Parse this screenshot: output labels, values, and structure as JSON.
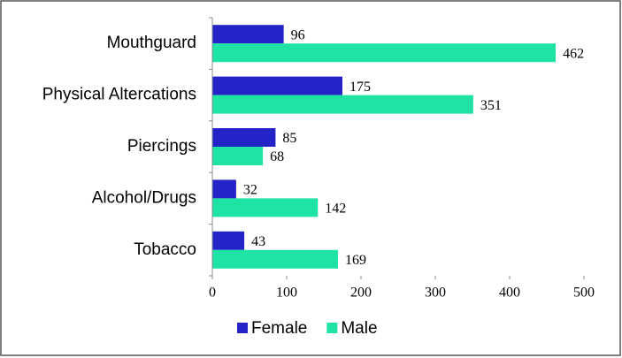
{
  "chart_data": {
    "type": "bar",
    "orientation": "horizontal",
    "categories": [
      "Mouthguard",
      "Physical Altercations",
      "Piercings",
      "Alcohol/Drugs",
      "Tobacco"
    ],
    "series": [
      {
        "name": "Female",
        "color": "#2323c8",
        "values": [
          96,
          175,
          85,
          32,
          43
        ]
      },
      {
        "name": "Male",
        "color": "#1fe3a4",
        "values": [
          462,
          351,
          68,
          142,
          169
        ]
      }
    ],
    "xlim": [
      0,
      500
    ],
    "xticks": [
      0,
      100,
      200,
      300,
      400,
      500
    ],
    "legend": "bottom",
    "grid": false
  }
}
